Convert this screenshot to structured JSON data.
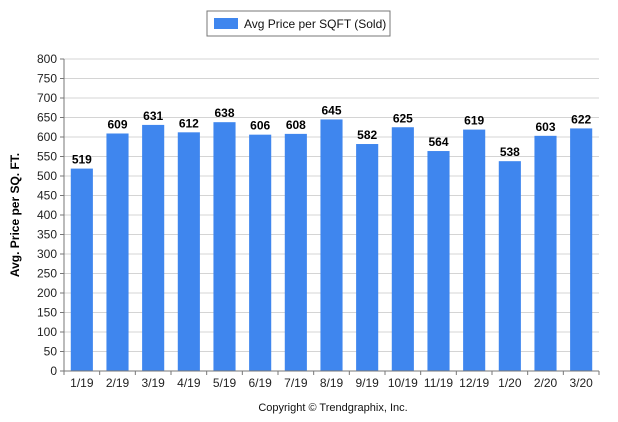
{
  "chart_data": {
    "type": "bar",
    "title": "",
    "xlabel": "",
    "ylabel": "Avg. Price per SQ. FT.",
    "categories": [
      "1/19",
      "2/19",
      "3/19",
      "4/19",
      "5/19",
      "6/19",
      "7/19",
      "8/19",
      "9/19",
      "10/19",
      "11/19",
      "12/19",
      "1/20",
      "2/20",
      "3/20"
    ],
    "series": [
      {
        "name": "Avg Price per SQFT (Sold)",
        "values": [
          519,
          609,
          631,
          612,
          638,
          606,
          608,
          645,
          582,
          625,
          564,
          619,
          538,
          603,
          622
        ],
        "color": "#3f86ee"
      }
    ],
    "ylim": [
      0,
      800
    ],
    "ytick_step": 50,
    "grid": true,
    "legend_position": "top-center",
    "data_labels": true
  },
  "footer": {
    "credit": "Copyright © Trendgraphix, Inc."
  }
}
